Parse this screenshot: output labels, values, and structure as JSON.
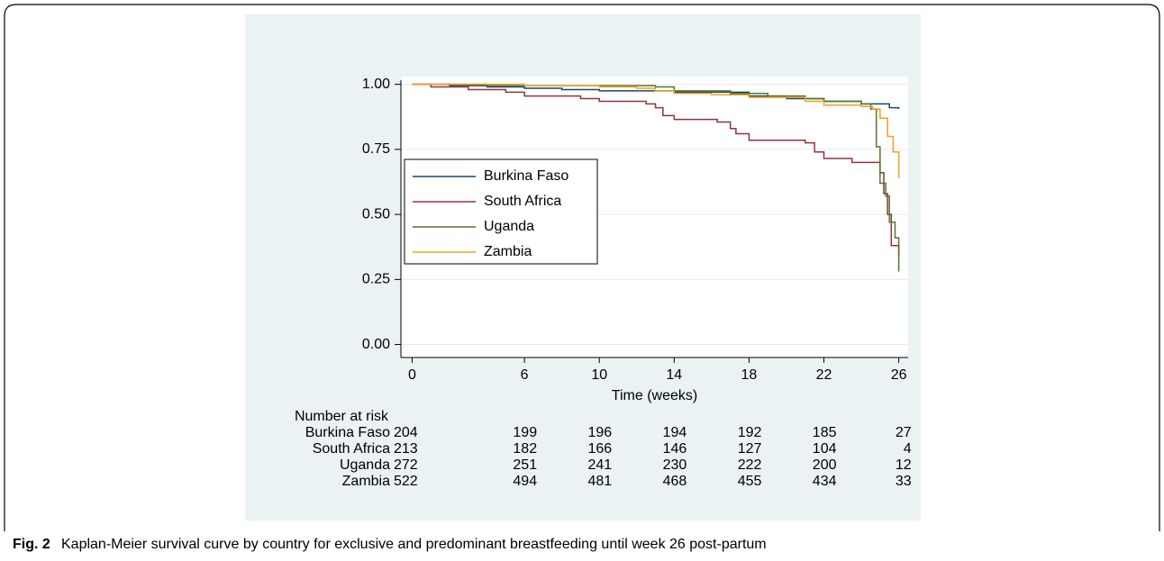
{
  "chart_data": {
    "type": "step",
    "x_label": "Time (weeks)",
    "xlim": [
      -0.6,
      26.5
    ],
    "ylim": [
      -0.05,
      1.03
    ],
    "xticks": [
      0,
      6,
      10,
      14,
      18,
      22,
      26
    ],
    "yticks": [
      {
        "value": 0,
        "label": "0.00"
      },
      {
        "value": 0.25,
        "label": "0.25"
      },
      {
        "value": 0.5,
        "label": "0.50"
      },
      {
        "value": 0.75,
        "label": "0.75"
      },
      {
        "value": 1,
        "label": "1.00"
      }
    ],
    "grid": true,
    "legend": "left",
    "series": [
      {
        "name": "Burkina Faso",
        "color": "#1a476f",
        "x": [
          0,
          2,
          4,
          6,
          8,
          10,
          14,
          18,
          20,
          22,
          24,
          25.5,
          26
        ],
        "values": [
          1.0,
          0.995,
          0.99,
          0.985,
          0.98,
          0.975,
          0.97,
          0.955,
          0.945,
          0.935,
          0.925,
          0.91,
          0.905
        ]
      },
      {
        "name": "South Africa",
        "color": "#90353b",
        "x": [
          0,
          1,
          3,
          5,
          6,
          9,
          10,
          12.5,
          13,
          13.4,
          14,
          16.3,
          17,
          17.3,
          18,
          21,
          21.5,
          22,
          23.5,
          25,
          25.2,
          25.4,
          25.6,
          26
        ],
        "values": [
          1.0,
          0.99,
          0.98,
          0.97,
          0.955,
          0.945,
          0.935,
          0.925,
          0.91,
          0.88,
          0.865,
          0.855,
          0.83,
          0.81,
          0.785,
          0.775,
          0.74,
          0.715,
          0.7,
          0.66,
          0.58,
          0.5,
          0.38,
          0.34
        ]
      },
      {
        "name": "Uganda",
        "color": "#55752f",
        "x": [
          0,
          4,
          13,
          14,
          17,
          19,
          21,
          22,
          24,
          24.5,
          24.8,
          25,
          25.3,
          25.5,
          25.8,
          26
        ],
        "values": [
          1.0,
          0.995,
          0.99,
          0.975,
          0.965,
          0.955,
          0.945,
          0.935,
          0.925,
          0.905,
          0.76,
          0.62,
          0.57,
          0.47,
          0.41,
          0.28
        ]
      },
      {
        "name": "Zambia",
        "color": "#f0a020",
        "x": [
          0,
          6,
          10,
          12,
          13,
          14,
          16,
          18,
          21,
          22,
          24,
          24.6,
          25,
          25.4,
          25.7,
          26
        ],
        "values": [
          1.0,
          0.995,
          0.99,
          0.985,
          0.975,
          0.965,
          0.96,
          0.95,
          0.935,
          0.92,
          0.915,
          0.905,
          0.87,
          0.8,
          0.74,
          0.64
        ]
      }
    ],
    "risk_table": {
      "title": "Number at risk",
      "rows": [
        {
          "name": "Burkina Faso",
          "values": [
            204,
            199,
            196,
            194,
            192,
            185,
            27
          ]
        },
        {
          "name": "South Africa",
          "values": [
            213,
            182,
            166,
            146,
            127,
            104,
            4
          ]
        },
        {
          "name": "Uganda",
          "values": [
            272,
            251,
            241,
            230,
            222,
            200,
            12
          ]
        },
        {
          "name": "Zambia",
          "values": [
            522,
            494,
            481,
            468,
            455,
            434,
            33
          ]
        }
      ]
    }
  },
  "caption": {
    "label": "Fig. 2",
    "text": "Kaplan-Meier survival curve by country for exclusive and predominant breastfeeding until week 26 post-partum"
  }
}
